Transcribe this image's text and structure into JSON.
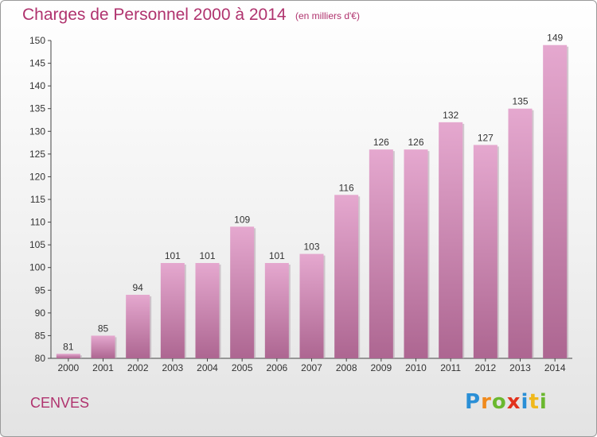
{
  "title": "Charges de Personnel 2000 à 2014",
  "subtitle": "(en milliers d'€)",
  "commune": "CENVES",
  "logo": {
    "letters": [
      "P",
      "r",
      "o",
      "x",
      "i",
      "t",
      "i"
    ],
    "colors": [
      "#2a8fd6",
      "#f08a1c",
      "#6bb82f",
      "#e2321d",
      "#2a8fd6",
      "#f0b81c",
      "#6bb82f"
    ]
  },
  "colors": {
    "title": "#b0336e",
    "bar_top": "#e5a8cf",
    "bar_bottom": "#ad6691",
    "axis": "#444444"
  },
  "chart_data": {
    "type": "bar",
    "categories": [
      "2000",
      "2001",
      "2002",
      "2003",
      "2004",
      "2005",
      "2006",
      "2007",
      "2008",
      "2009",
      "2010",
      "2011",
      "2012",
      "2013",
      "2014"
    ],
    "values": [
      81,
      85,
      94,
      101,
      101,
      109,
      101,
      103,
      116,
      126,
      126,
      132,
      127,
      135,
      149
    ],
    "ylim": [
      80,
      150
    ],
    "yticks": [
      80,
      85,
      90,
      95,
      100,
      105,
      110,
      115,
      120,
      125,
      130,
      135,
      140,
      145,
      150
    ],
    "grid": false
  }
}
